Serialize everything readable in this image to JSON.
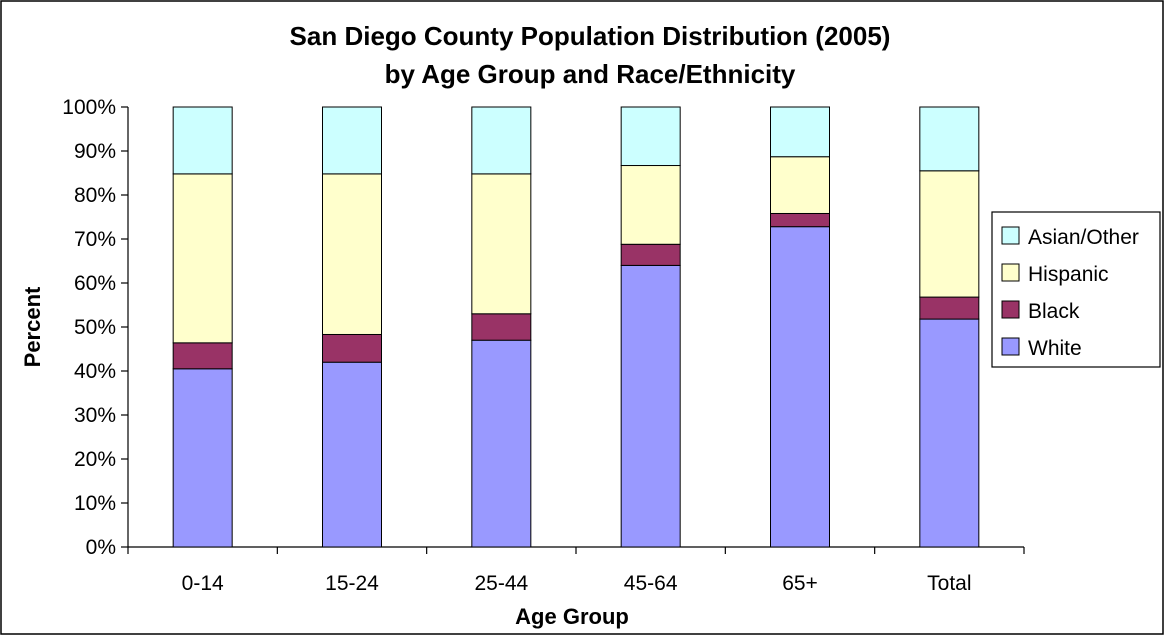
{
  "chart_data": {
    "type": "bar",
    "stacked": true,
    "title": "San Diego County Population Distribution (2005)",
    "subtitle": "by Age Group and Race/Ethnicity",
    "xlabel": "Age Group",
    "ylabel": "Percent",
    "categories": [
      "0-14",
      "15-24",
      "25-44",
      "45-64",
      "65+",
      "Total"
    ],
    "ylim": [
      0,
      100
    ],
    "yticks": [
      "0%",
      "10%",
      "20%",
      "30%",
      "40%",
      "50%",
      "60%",
      "70%",
      "80%",
      "90%",
      "100%"
    ],
    "grid": false,
    "legend_position": "right",
    "series": [
      {
        "name": "White",
        "color": "#9999ff",
        "values": [
          40.5,
          42.0,
          47.0,
          64.0,
          72.8,
          51.8
        ]
      },
      {
        "name": "Black",
        "color": "#993366",
        "values": [
          5.9,
          6.3,
          6.0,
          4.8,
          3.0,
          5.0
        ]
      },
      {
        "name": "Hispanic",
        "color": "#ffffcc",
        "values": [
          38.4,
          36.5,
          31.8,
          17.9,
          12.9,
          28.7
        ]
      },
      {
        "name": "Asian/Other",
        "color": "#ccffff",
        "values": [
          15.2,
          15.2,
          15.2,
          13.3,
          11.3,
          14.5
        ]
      }
    ]
  }
}
